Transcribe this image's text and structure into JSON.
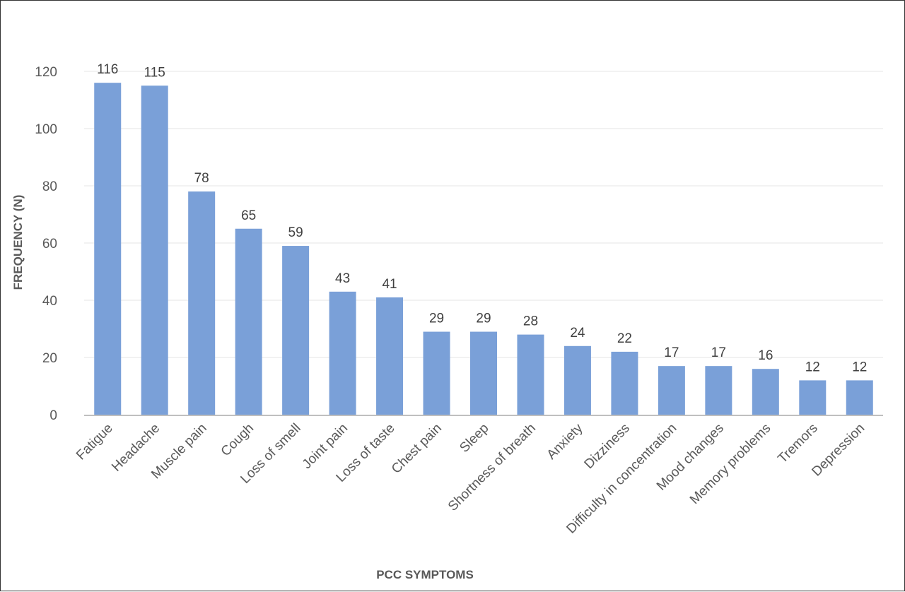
{
  "chart_data": {
    "type": "bar",
    "title": "",
    "xlabel": "PCC SYMPTOMS",
    "ylabel": "FREQUENCY (N)",
    "ylim": [
      0,
      120
    ],
    "yticks": [
      0,
      20,
      40,
      60,
      80,
      100,
      120
    ],
    "grid": true,
    "legend": "none",
    "bar_color": "#7aa0d8",
    "categories": [
      "Fatigue",
      "Headache",
      "Muscle pain",
      "Cough",
      "Loss of smell",
      "Joint pain",
      "Loss of taste",
      "Chest pain",
      "Sleep",
      "Shortness of breath",
      "Anxiety",
      "Dizziness",
      "Difficulty in concentration",
      "Mood changes",
      "Memory problems",
      "Tremors",
      "Depression"
    ],
    "values": [
      116,
      115,
      78,
      65,
      59,
      43,
      41,
      29,
      29,
      28,
      24,
      22,
      17,
      17,
      16,
      12,
      12
    ]
  }
}
